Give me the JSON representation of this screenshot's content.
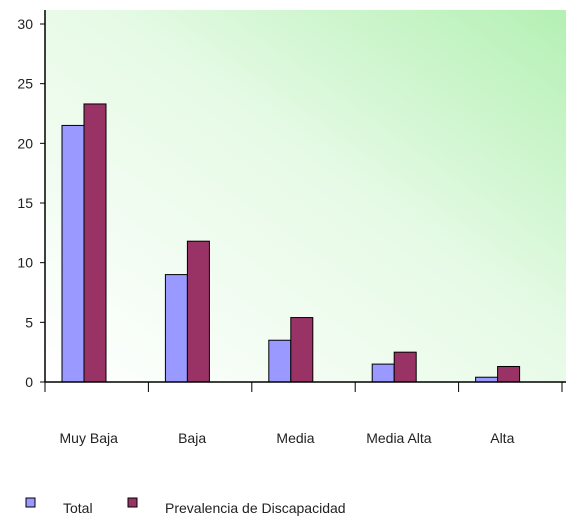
{
  "chart_data": {
    "type": "bar",
    "categories": [
      "Muy Baja",
      "Baja",
      "Media",
      "Media Alta",
      "Alta"
    ],
    "series": [
      {
        "name": "Total",
        "values": [
          21.5,
          9,
          3.5,
          1.5,
          0.4
        ],
        "color": "#9999ff"
      },
      {
        "name": "Prevalencia de Discapacidad",
        "values": [
          23.3,
          11.8,
          5.4,
          2.5,
          1.3
        ],
        "color": "#993366"
      }
    ],
    "y_ticks": [
      "0",
      "5",
      "10",
      "15",
      "20",
      "25",
      "30"
    ],
    "ylim": [
      0,
      30
    ],
    "grid": false,
    "plot_background": "gradient white to light green",
    "legend_position": "bottom-left"
  }
}
